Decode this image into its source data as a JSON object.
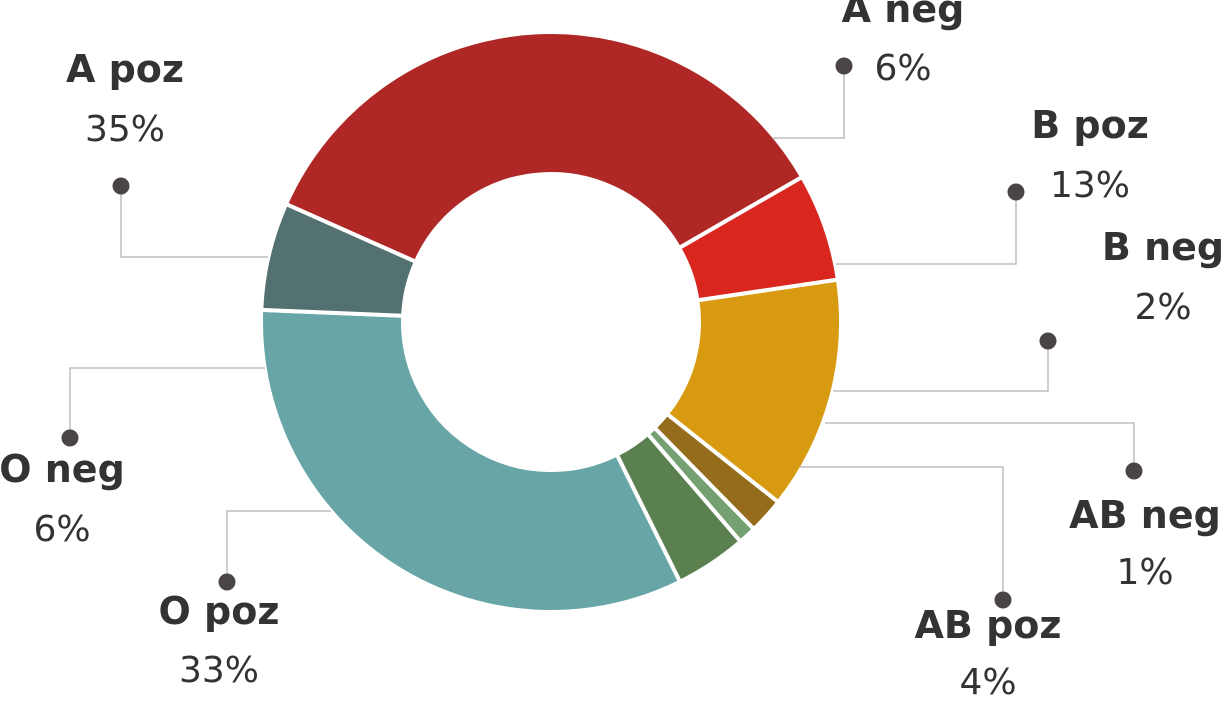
{
  "chart_data": {
    "type": "pie",
    "donut": true,
    "slices": [
      {
        "label": "A poz",
        "value": 35,
        "display": "35%",
        "color": "#b02825"
      },
      {
        "label": "A neg",
        "value": 6,
        "display": "6%",
        "color": "#d9261e"
      },
      {
        "label": "B poz",
        "value": 13,
        "display": "13%",
        "color": "#d89a10"
      },
      {
        "label": "B neg",
        "value": 2,
        "display": "2%",
        "color": "#946c1c"
      },
      {
        "label": "AB neg",
        "value": 1,
        "display": "1%",
        "color": "#75a072"
      },
      {
        "label": "AB poz",
        "value": 4,
        "display": "4%",
        "color": "#5b8050"
      },
      {
        "label": "O poz",
        "value": 33,
        "display": "33%",
        "color": "#68a5a6"
      },
      {
        "label": "O neg",
        "value": 6,
        "display": "6%",
        "color": "#527170"
      }
    ]
  }
}
